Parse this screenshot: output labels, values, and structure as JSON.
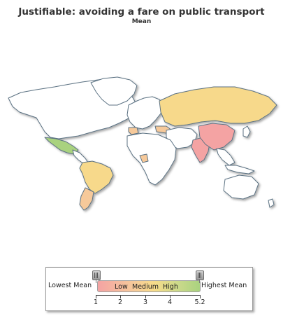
{
  "title": "Justifiable: avoiding a fare on public transport",
  "subtitle": "Mean",
  "colors": {
    "no_data": "#ffffff",
    "low": "#f4a3a3",
    "low_medium": "#f6c99a",
    "medium": "#f7d98b",
    "high": "#a9d27f",
    "border": "#5b7283"
  },
  "legend": {
    "lowest_label": "Lowest Mean",
    "highest_label": "Highest Mean",
    "bands": [
      "Low",
      "Medium",
      "High"
    ],
    "ticks": [
      "1",
      "2",
      "3",
      "4",
      "5.2"
    ],
    "min": 1,
    "max": 5.2
  },
  "regions": [
    {
      "name": "North America",
      "value_band": "no data"
    },
    {
      "name": "Mexico",
      "value_band": "high"
    },
    {
      "name": "South America",
      "value_band": "medium"
    },
    {
      "name": "Argentina",
      "value_band": "low_medium"
    },
    {
      "name": "Europe",
      "value_band": "no data"
    },
    {
      "name": "Russia",
      "value_band": "medium"
    },
    {
      "name": "China",
      "value_band": "low"
    },
    {
      "name": "India",
      "value_band": "low"
    },
    {
      "name": "Africa",
      "value_band": "no data"
    },
    {
      "name": "Australia",
      "value_band": "no data"
    }
  ]
}
